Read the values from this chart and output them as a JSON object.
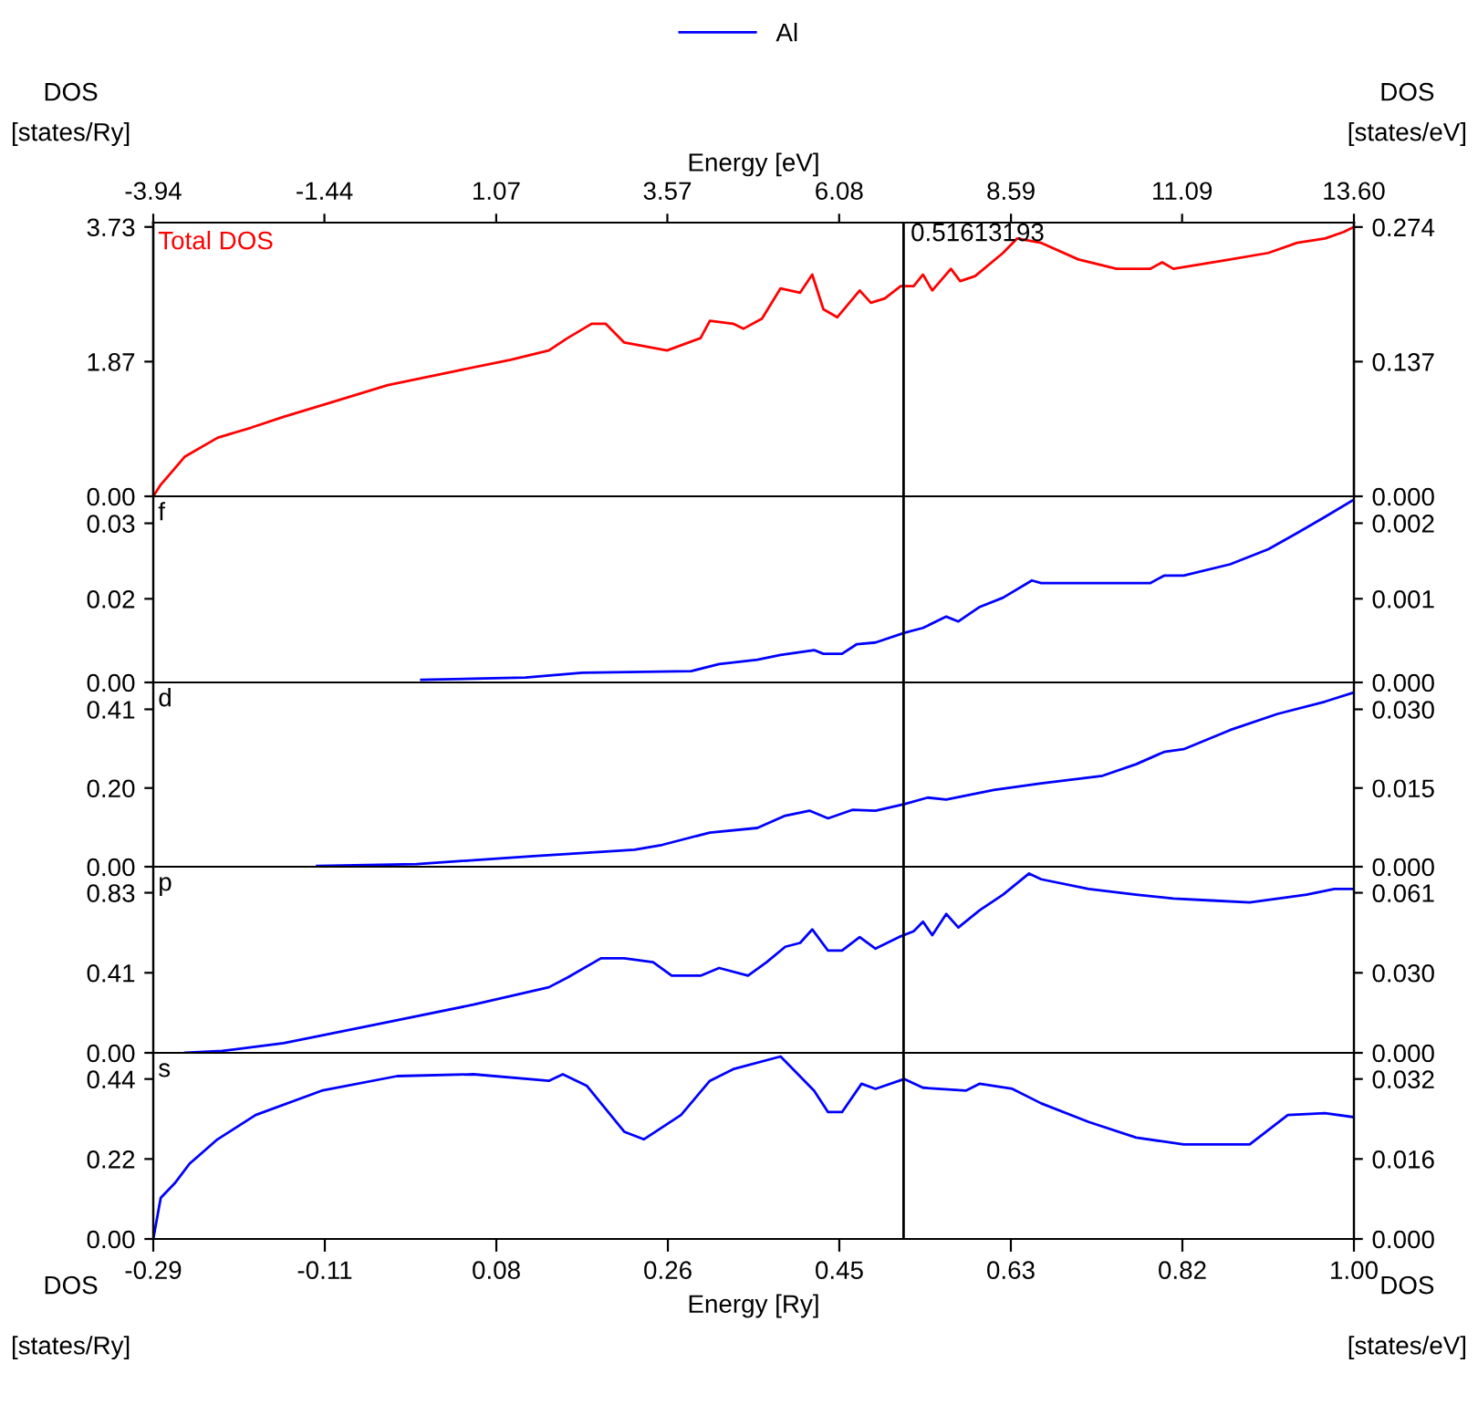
{
  "chart_data": [
    {
      "type": "line",
      "tick_labels": "y",
      "ylabel": "DOS\n[states/Ry]",
      "y2label": "DOS\n[states/eV]",
      "x2label": "Energy [eV]",
      "grid": false,
      "line_style": "solid",
      "marker": "none",
      "xlim": [
        -0.29,
        1.0
      ],
      "ylim": [
        0,
        3.79
      ],
      "y2lim": [
        0,
        0.2786
      ],
      "x2lim": [
        -3.94,
        13.6
      ],
      "x2ticks": [
        -3.94,
        -1.44,
        1.07,
        3.57,
        6.08,
        8.59,
        11.09,
        {
          "value": 13.6,
          "label": "13.60"
        }
      ],
      "yticks": [
        {
          "value": 0,
          "label": "0.00"
        },
        {
          "value": 1.865,
          "label": "1.87"
        },
        3.73
      ],
      "y2ticks": [
        {
          "value": 0,
          "label": "0.000"
        },
        {
          "value": 0.1371,
          "label": "0.137"
        },
        {
          "value": 0.2741,
          "label": "0.274"
        }
      ],
      "ref_lines": [
        {
          "axis": "x",
          "value": 0.51613193,
          "label": "0.51613193",
          "color": "#000000"
        }
      ],
      "series": [
        {
          "name": "Total DOS",
          "color": "#ff0000",
          "x": [
            -0.29,
            -0.282,
            -0.256,
            -0.221,
            -0.185,
            -0.15,
            -0.099,
            -0.038,
            0.033,
            0.094,
            0.135,
            0.155,
            0.181,
            0.196,
            0.216,
            0.262,
            0.298,
            0.308,
            0.333,
            0.344,
            0.364,
            0.384,
            0.405,
            0.418,
            0.43,
            0.445,
            0.469,
            0.481,
            0.496,
            0.513,
            0.527,
            0.537,
            0.547,
            0.567,
            0.577,
            0.593,
            0.623,
            0.638,
            0.664,
            0.704,
            0.745,
            0.781,
            0.794,
            0.806,
            0.867,
            0.908,
            0.939,
            0.969,
            0.989,
            1.0
          ],
          "values": [
            0,
            0.16,
            0.55,
            0.81,
            0.95,
            1.1,
            1.3,
            1.54,
            1.73,
            1.89,
            2.02,
            2.19,
            2.39,
            2.39,
            2.13,
            2.02,
            2.19,
            2.43,
            2.39,
            2.32,
            2.46,
            2.88,
            2.82,
            3.07,
            2.59,
            2.48,
            2.85,
            2.68,
            2.74,
            2.91,
            2.91,
            3.07,
            2.85,
            3.15,
            2.98,
            3.05,
            3.37,
            3.57,
            3.51,
            3.28,
            3.15,
            3.15,
            3.24,
            3.15,
            3.28,
            3.37,
            3.51,
            3.57,
            3.66,
            3.73
          ]
        }
      ]
    },
    {
      "type": "line",
      "title": "f",
      "tick_labels": "y",
      "grid": false,
      "legend": "top",
      "line_style": "solid",
      "marker": "none",
      "xlim": [
        -0.29,
        1.0
      ],
      "ylim": [
        0,
        0.0345
      ],
      "y2lim": [
        0,
        0.002536
      ],
      "yticks": [
        {
          "value": 0,
          "label": "0.00"
        },
        {
          "value": 0.0155,
          "label": "0.02"
        },
        {
          "value": 0.0295,
          "label": "0.03"
        }
      ],
      "y2ticks": [
        {
          "value": 0,
          "label": "0.000"
        },
        {
          "value": 0.00114,
          "label": "0.001"
        },
        {
          "value": 0.00217,
          "label": "0.002"
        }
      ],
      "ref_lines": [
        {
          "axis": "x",
          "value": 0.51613193,
          "color": "#000000"
        }
      ],
      "series": [
        {
          "name": "Al",
          "color": "#0000ff",
          "x": [
            -0.002,
            0.11,
            0.171,
            0.288,
            0.318,
            0.359,
            0.384,
            0.42,
            0.43,
            0.45,
            0.466,
            0.486,
            0.517,
            0.537,
            0.562,
            0.575,
            0.598,
            0.623,
            0.654,
            0.664,
            0.781,
            0.796,
            0.817,
            0.867,
            0.908,
            0.939,
            0.969,
            1.0
          ],
          "values": [
            0.0005,
            0.0009,
            0.0018,
            0.0021,
            0.0034,
            0.0042,
            0.0051,
            0.006,
            0.0053,
            0.0053,
            0.0071,
            0.0074,
            0.0092,
            0.0101,
            0.0122,
            0.0113,
            0.014,
            0.0157,
            0.0189,
            0.0184,
            0.0184,
            0.0198,
            0.0198,
            0.0219,
            0.0247,
            0.0277,
            0.0307,
            0.0339
          ]
        }
      ]
    },
    {
      "type": "line",
      "title": "d",
      "tick_labels": "y",
      "grid": false,
      "line_style": "solid",
      "marker": "none",
      "xlim": [
        -0.29,
        1.0
      ],
      "ylim": [
        0,
        0.48
      ],
      "y2lim": [
        0,
        0.03528
      ],
      "yticks": [
        {
          "value": 0,
          "label": "0.00"
        },
        {
          "value": 0.205,
          "label": "0.20"
        },
        0.41
      ],
      "y2ticks": [
        {
          "value": 0,
          "label": "0.000"
        },
        {
          "value": 0.01507,
          "label": "0.015"
        },
        {
          "value": 0.03013,
          "label": "0.030"
        }
      ],
      "ref_lines": [
        {
          "axis": "x",
          "value": 0.51613193,
          "color": "#000000"
        }
      ],
      "series": [
        {
          "color": "#0000ff",
          "x": [
            -0.114,
            -0.007,
            0.115,
            0.227,
            0.257,
            0.308,
            0.359,
            0.389,
            0.415,
            0.435,
            0.461,
            0.486,
            0.517,
            0.542,
            0.562,
            0.613,
            0.664,
            0.73,
            0.766,
            0.796,
            0.817,
            0.867,
            0.918,
            0.969,
            1.0
          ],
          "values": [
            0.002,
            0.007,
            0.027,
            0.044,
            0.057,
            0.089,
            0.101,
            0.133,
            0.146,
            0.126,
            0.148,
            0.146,
            0.163,
            0.18,
            0.175,
            0.2,
            0.217,
            0.237,
            0.267,
            0.299,
            0.306,
            0.356,
            0.398,
            0.43,
            0.454
          ]
        }
      ]
    },
    {
      "type": "line",
      "title": "p",
      "tick_labels": "y",
      "grid": false,
      "line_style": "solid",
      "marker": "none",
      "xlim": [
        -0.29,
        1.0
      ],
      "ylim": [
        0,
        0.965
      ],
      "y2lim": [
        0,
        0.07093
      ],
      "yticks": [
        {
          "value": 0,
          "label": "0.00"
        },
        {
          "value": 0.415,
          "label": "0.41"
        },
        0.83
      ],
      "y2ticks": [
        {
          "value": 0,
          "label": "0.000"
        },
        {
          "value": 0.0305,
          "label": "0.030"
        },
        0.061
      ],
      "ref_lines": [
        {
          "axis": "x",
          "value": 0.51613193,
          "color": "#000000"
        }
      ],
      "series": [
        {
          "color": "#0000ff",
          "x": [
            -0.256,
            -0.216,
            -0.15,
            -0.048,
            0.054,
            0.135,
            0.155,
            0.191,
            0.216,
            0.247,
            0.267,
            0.298,
            0.318,
            0.349,
            0.369,
            0.389,
            0.405,
            0.418,
            0.435,
            0.45,
            0.469,
            0.486,
            0.511,
            0.527,
            0.537,
            0.547,
            0.562,
            0.575,
            0.598,
            0.623,
            0.651,
            0.664,
            0.715,
            0.766,
            0.806,
            0.847,
            0.888,
            0.949,
            0.979,
            1.0
          ],
          "values": [
            0,
            0.01,
            0.05,
            0.15,
            0.25,
            0.34,
            0.39,
            0.49,
            0.49,
            0.47,
            0.4,
            0.4,
            0.44,
            0.4,
            0.47,
            0.55,
            0.57,
            0.64,
            0.53,
            0.53,
            0.6,
            0.54,
            0.6,
            0.63,
            0.68,
            0.61,
            0.72,
            0.65,
            0.74,
            0.82,
            0.93,
            0.9,
            0.85,
            0.82,
            0.8,
            0.79,
            0.78,
            0.82,
            0.85,
            0.85
          ]
        }
      ]
    },
    {
      "type": "line",
      "title": "s",
      "xlabel": "Energy [Ry]",
      "ylabel": "DOS\n[states/Ry]",
      "y2label": "DOS\n[states/eV]",
      "grid": false,
      "line_style": "solid",
      "marker": "none",
      "xlim": [
        -0.29,
        1.0
      ],
      "ylim": [
        0,
        0.512
      ],
      "y2lim": [
        0,
        0.03763
      ],
      "xticks": [
        {
          "value": -0.29,
          "label": "-0.29"
        },
        {
          "value": -0.1057,
          "label": "-0.11"
        },
        {
          "value": 0.0786,
          "label": "0.08"
        },
        {
          "value": 0.2629,
          "label": "0.26"
        },
        {
          "value": 0.4471,
          "label": "0.45"
        },
        {
          "value": 0.6314,
          "label": "0.63"
        },
        {
          "value": 0.8157,
          "label": "0.82"
        },
        {
          "value": 1.0,
          "label": "1.00"
        }
      ],
      "yticks": [
        {
          "value": 0,
          "label": "0.00"
        },
        0.22,
        0.44
      ],
      "y2ticks": [
        {
          "value": 0,
          "label": "0.000"
        },
        {
          "value": 0.01617,
          "label": "0.016"
        },
        {
          "value": 0.03234,
          "label": "0.032"
        }
      ],
      "ref_lines": [
        {
          "axis": "x",
          "value": 0.51613193,
          "color": "#000000"
        }
      ],
      "series": [
        {
          "color": "#0000ff",
          "x": [
            -0.29,
            -0.282,
            -0.267,
            -0.251,
            -0.221,
            -0.18,
            -0.109,
            -0.028,
            0.054,
            0.135,
            0.15,
            0.176,
            0.216,
            0.237,
            0.277,
            0.308,
            0.333,
            0.384,
            0.42,
            0.435,
            0.45,
            0.471,
            0.486,
            0.517,
            0.537,
            0.583,
            0.598,
            0.633,
            0.664,
            0.715,
            0.766,
            0.817,
            0.888,
            0.929,
            0.969,
            1.0
          ],
          "values": [
            0,
            0.113,
            0.153,
            0.207,
            0.274,
            0.341,
            0.408,
            0.448,
            0.453,
            0.435,
            0.453,
            0.421,
            0.295,
            0.274,
            0.341,
            0.435,
            0.467,
            0.502,
            0.408,
            0.349,
            0.349,
            0.427,
            0.413,
            0.44,
            0.416,
            0.408,
            0.427,
            0.413,
            0.373,
            0.322,
            0.279,
            0.26,
            0.26,
            0.341,
            0.346,
            0.335
          ]
        }
      ]
    }
  ]
}
